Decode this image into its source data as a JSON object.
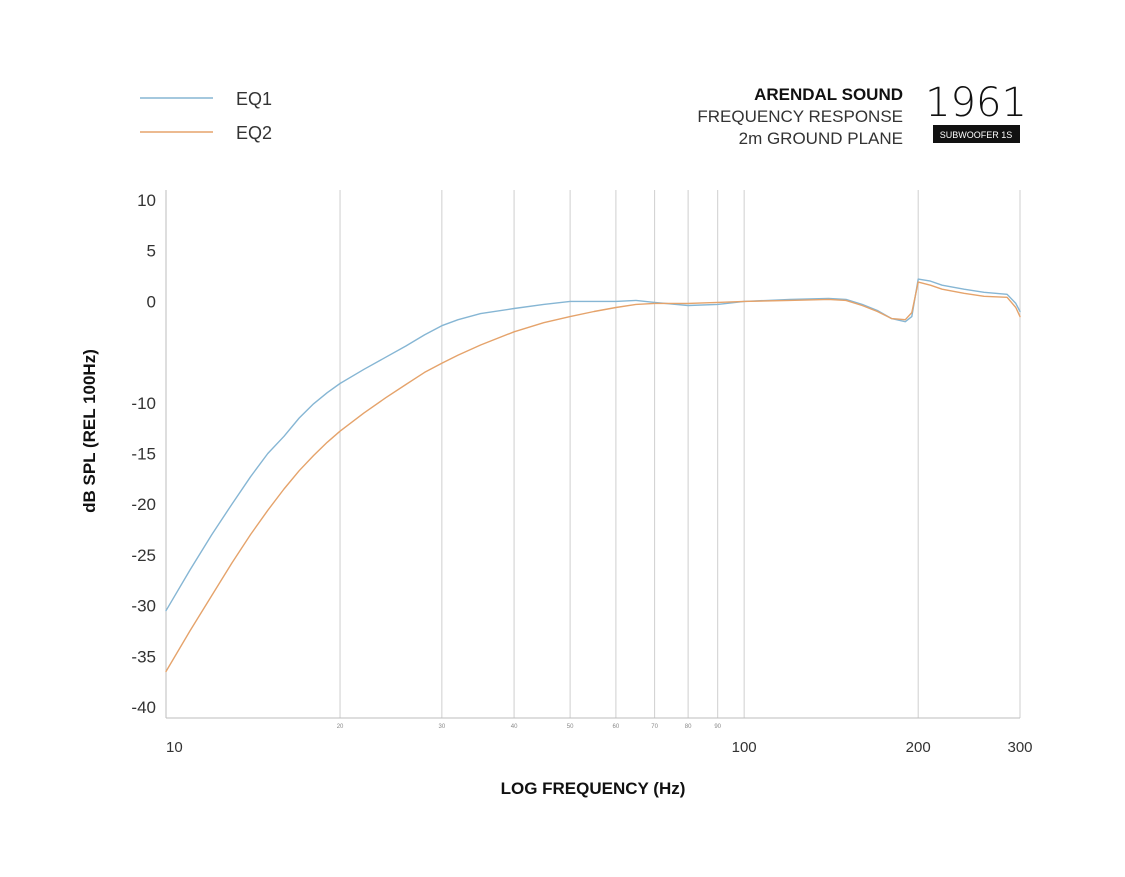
{
  "brand": {
    "name": "ARENDAL SOUND",
    "line1": "FREQUENCY RESPONSE",
    "line2": "2m GROUND PLANE",
    "logo_year": "1961",
    "logo_badge": "SUBWOOFER 1S"
  },
  "colors": {
    "eq1": "#86b6d4",
    "eq2": "#e5a36b",
    "grid": "#cfcfcf",
    "axis": "#bdbdbd"
  },
  "chart_data": {
    "type": "line",
    "title": "",
    "xlabel": "LOG FREQUENCY (Hz)",
    "ylabel": "dB SPL (REL 100Hz)",
    "x_scale": "log",
    "xlim": [
      10,
      300
    ],
    "ylim": [
      -40,
      10
    ],
    "y_ticks": [
      10,
      5,
      0,
      -10,
      -15,
      -20,
      -25,
      -30,
      -35,
      -40
    ],
    "x_major_ticks": [
      {
        "value": 10,
        "label": "10"
      },
      {
        "value": 100,
        "label": "100"
      },
      {
        "value": 200,
        "label": "200"
      },
      {
        "value": 300,
        "label": "300"
      }
    ],
    "x_minor_ticks": [
      {
        "value": 20,
        "label": "20"
      },
      {
        "value": 30,
        "label": "30"
      },
      {
        "value": 40,
        "label": "40"
      },
      {
        "value": 50,
        "label": "50"
      },
      {
        "value": 60,
        "label": "60"
      },
      {
        "value": 70,
        "label": "70"
      },
      {
        "value": 80,
        "label": "80"
      },
      {
        "value": 90,
        "label": "90"
      }
    ],
    "x_gridlines": [
      20,
      30,
      40,
      50,
      60,
      70,
      80,
      90,
      100,
      200,
      300
    ],
    "legend_position": "top-left",
    "series": [
      {
        "name": "EQ1",
        "color": "#86b6d4",
        "points": [
          [
            10,
            -30.5
          ],
          [
            11,
            -26.5
          ],
          [
            12,
            -23
          ],
          [
            13,
            -20
          ],
          [
            14,
            -17.3
          ],
          [
            15,
            -15
          ],
          [
            16,
            -13.3
          ],
          [
            17,
            -11.5
          ],
          [
            18,
            -10.1
          ],
          [
            19,
            -9
          ],
          [
            20,
            -8.1
          ],
          [
            22,
            -6.7
          ],
          [
            24,
            -5.5
          ],
          [
            26,
            -4.4
          ],
          [
            28,
            -3.3
          ],
          [
            30,
            -2.4
          ],
          [
            32,
            -1.8
          ],
          [
            35,
            -1.2
          ],
          [
            40,
            -0.7
          ],
          [
            45,
            -0.3
          ],
          [
            50,
            0
          ],
          [
            55,
            0
          ],
          [
            60,
            0
          ],
          [
            65,
            0.1
          ],
          [
            70,
            -0.1
          ],
          [
            80,
            -0.4
          ],
          [
            90,
            -0.3
          ],
          [
            100,
            0
          ],
          [
            110,
            0.1
          ],
          [
            120,
            0.2
          ],
          [
            140,
            0.3
          ],
          [
            150,
            0.2
          ],
          [
            160,
            -0.3
          ],
          [
            170,
            -0.9
          ],
          [
            180,
            -1.7
          ],
          [
            190,
            -2
          ],
          [
            195,
            -1.5
          ],
          [
            200,
            2.2
          ],
          [
            210,
            2
          ],
          [
            220,
            1.6
          ],
          [
            240,
            1.2
          ],
          [
            260,
            0.9
          ],
          [
            285,
            0.7
          ],
          [
            295,
            -0.2
          ],
          [
            300,
            -1
          ]
        ]
      },
      {
        "name": "EQ2",
        "color": "#e5a36b",
        "points": [
          [
            10,
            -36.5
          ],
          [
            11,
            -32.5
          ],
          [
            12,
            -29
          ],
          [
            13,
            -25.8
          ],
          [
            14,
            -23
          ],
          [
            15,
            -20.6
          ],
          [
            16,
            -18.5
          ],
          [
            17,
            -16.7
          ],
          [
            18,
            -15.2
          ],
          [
            19,
            -13.9
          ],
          [
            20,
            -12.8
          ],
          [
            22,
            -11
          ],
          [
            24,
            -9.5
          ],
          [
            26,
            -8.2
          ],
          [
            28,
            -7
          ],
          [
            30,
            -6.1
          ],
          [
            32,
            -5.3
          ],
          [
            35,
            -4.3
          ],
          [
            40,
            -3
          ],
          [
            45,
            -2.1
          ],
          [
            50,
            -1.5
          ],
          [
            55,
            -1
          ],
          [
            60,
            -0.6
          ],
          [
            65,
            -0.3
          ],
          [
            70,
            -0.2
          ],
          [
            80,
            -0.2
          ],
          [
            90,
            -0.1
          ],
          [
            100,
            0
          ],
          [
            120,
            0.1
          ],
          [
            140,
            0.2
          ],
          [
            150,
            0.1
          ],
          [
            160,
            -0.4
          ],
          [
            170,
            -1
          ],
          [
            180,
            -1.7
          ],
          [
            190,
            -1.8
          ],
          [
            195,
            -1.1
          ],
          [
            200,
            1.9
          ],
          [
            210,
            1.6
          ],
          [
            220,
            1.2
          ],
          [
            240,
            0.8
          ],
          [
            260,
            0.5
          ],
          [
            285,
            0.4
          ],
          [
            295,
            -0.6
          ],
          [
            300,
            -1.5
          ]
        ]
      }
    ]
  }
}
